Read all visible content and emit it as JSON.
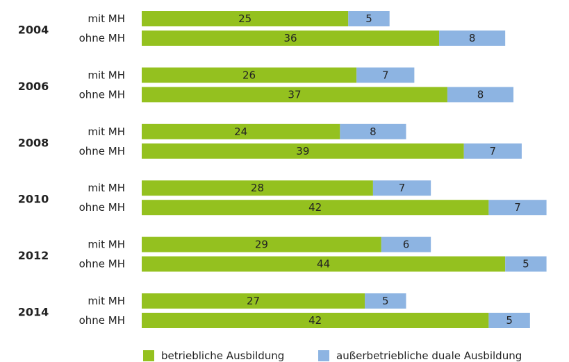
{
  "chart_data": {
    "type": "stacked-bar",
    "groups": [
      "2004",
      "2006",
      "2008",
      "2010",
      "2012",
      "2014"
    ],
    "categories": [
      "mit MH",
      "ohne MH",
      "mit MH",
      "ohne MH",
      "mit MH",
      "ohne MH",
      "mit MH",
      "ohne MH",
      "mit MH",
      "ohne MH",
      "mit MH",
      "ohne MH"
    ],
    "series": [
      {
        "name": "betriebliche Ausbildung",
        "color": "#94c11f",
        "values": [
          25,
          36,
          26,
          37,
          24,
          39,
          28,
          42,
          29,
          44,
          27,
          42
        ]
      },
      {
        "name": "außerbetriebliche duale Ausbildung",
        "color": "#8db4e2",
        "values": [
          5,
          8,
          7,
          8,
          8,
          7,
          7,
          7,
          6,
          5,
          5,
          5
        ]
      }
    ],
    "legend": "bottom"
  }
}
